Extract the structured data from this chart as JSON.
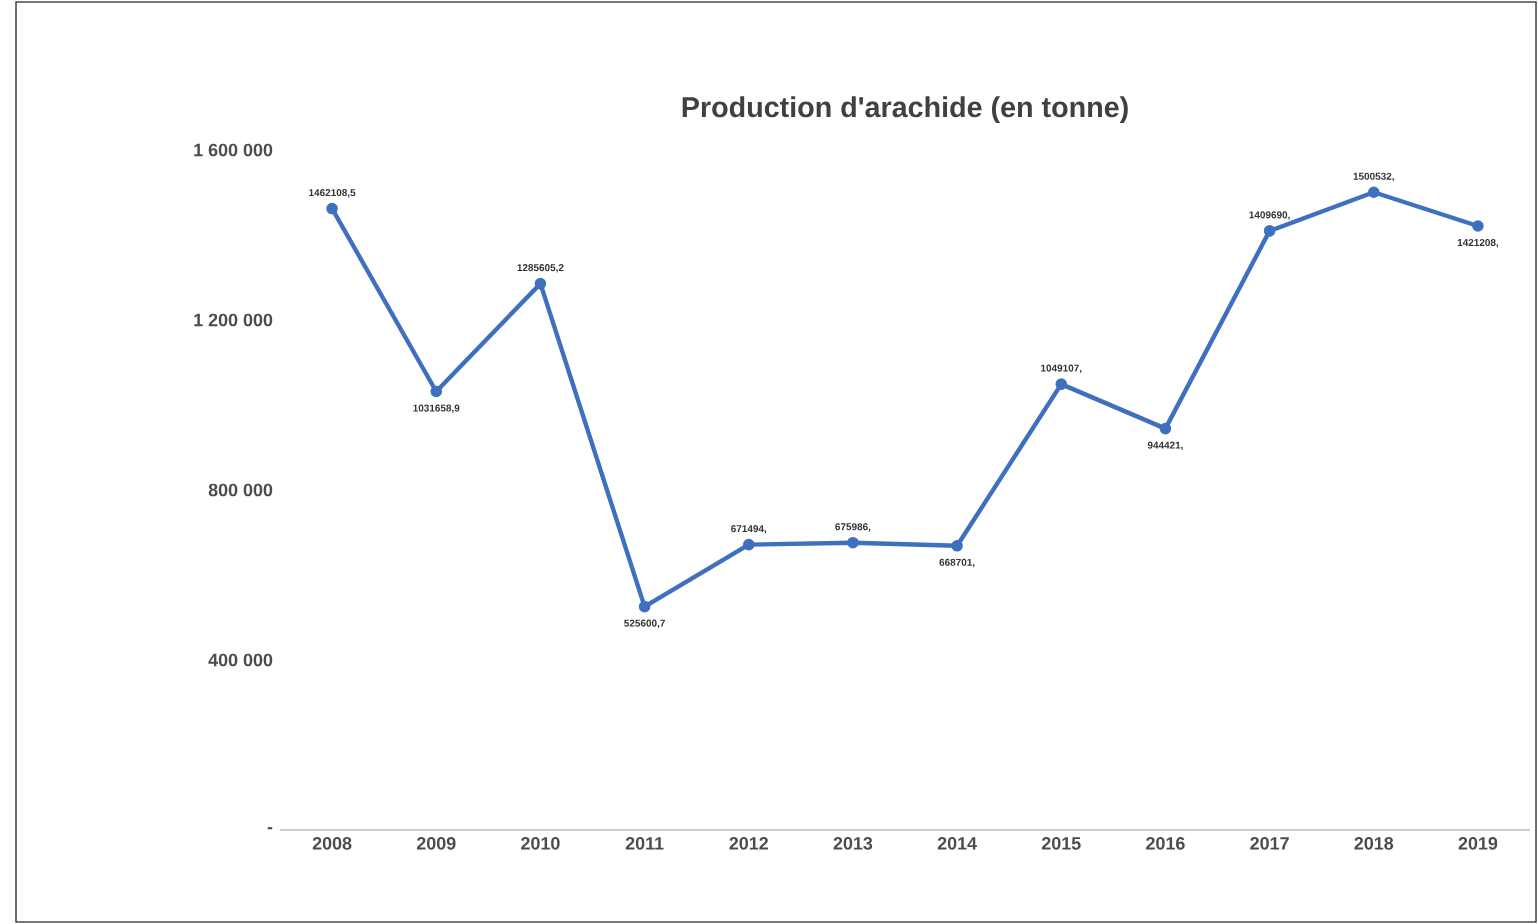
{
  "chart_data": {
    "type": "line",
    "title": "Production d'arachide (en tonne)",
    "categories": [
      "2008",
      "2009",
      "2010",
      "2011",
      "2012",
      "2013",
      "2014",
      "2015",
      "2016",
      "2017",
      "2018",
      "2019"
    ],
    "values": [
      1462108.5,
      1031658.9,
      1285605.2,
      525600.7,
      671494,
      675986,
      668701,
      1049107,
      944421,
      1409690,
      1500532,
      1421208
    ],
    "value_labels": [
      "1462108,5",
      "1031658,9",
      "1285605,2",
      "525600,7",
      "671494,",
      "675986,",
      "668701,",
      "1049107,",
      "944421,",
      "1409690,",
      "1500532,",
      "1421208,"
    ],
    "color": "#3f6fbf",
    "marker": "circle",
    "ylim": [
      0,
      1600000
    ],
    "yticks": [
      {
        "value": 0,
        "label": "-"
      },
      {
        "value": 400000,
        "label": "400 000"
      },
      {
        "value": 800000,
        "label": "800 000"
      },
      {
        "value": 1200000,
        "label": "1 200 000"
      },
      {
        "value": 1600000,
        "label": "1 600 000"
      }
    ],
    "grid": false
  }
}
